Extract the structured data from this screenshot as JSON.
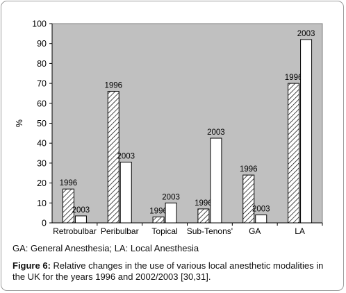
{
  "chart_data": {
    "type": "bar",
    "ylabel": "%",
    "ylim": [
      0,
      100
    ],
    "yticks": [
      0,
      10,
      20,
      30,
      40,
      50,
      60,
      70,
      80,
      90,
      100
    ],
    "categories": [
      "Retrobulbar",
      "Peribulbar",
      "Topical",
      "Sub-Tenons'",
      "GA",
      "LA"
    ],
    "series": [
      {
        "name": "1996",
        "values": [
          17,
          66,
          3,
          7,
          24,
          70
        ],
        "style": "hatched"
      },
      {
        "name": "2003",
        "values": [
          3.5,
          30.5,
          10,
          42.5,
          4,
          92
        ],
        "style": "white"
      }
    ],
    "bar_labels": [
      "1996",
      "2003"
    ],
    "legend": "none",
    "grid": false,
    "colors": {
      "plot_bg": "#c0c0c0",
      "bar_fill": "#ffffff",
      "bar_stroke": "#000000",
      "hatch": "#000000"
    }
  },
  "abbreviations": "GA: General Anesthesia; LA: Local Anesthesia",
  "caption": {
    "label": "Figure 6:",
    "text": " Relative changes in the use of various local anesthetic modalities in the UK for the years 1996 and 2002/2003 [30,31]."
  }
}
